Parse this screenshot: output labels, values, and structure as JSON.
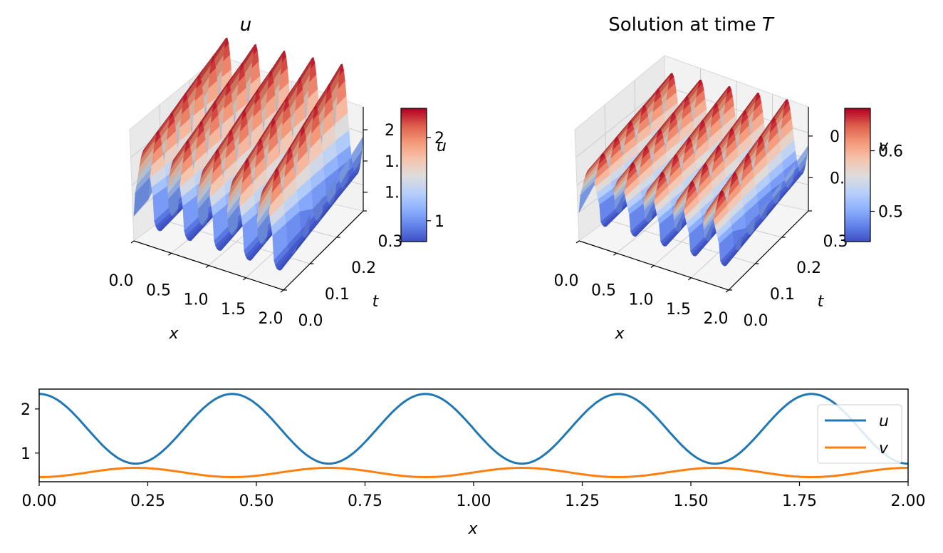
{
  "chart_data": [
    {
      "type": "surface3d",
      "title": "u",
      "xlabel": "x",
      "ylabel": "t",
      "zlabel": "u",
      "x_ticks": [
        "0.0",
        "0.5",
        "1.0",
        "1.5",
        "2.0"
      ],
      "t_ticks": [
        "0.0",
        "0.1",
        "0.2",
        "0.3"
      ],
      "z_ticks": [
        "2",
        "1.",
        "1."
      ],
      "xlim": [
        0,
        2
      ],
      "tlim": [
        0,
        0.3
      ],
      "colormap": "coolwarm",
      "colorbar": {
        "label": "u",
        "ticks": [
          "1",
          "2"
        ],
        "tick_values": [
          1,
          2
        ],
        "range": [
          0.75,
          2.35
        ]
      },
      "peak_count": 5,
      "value_range": [
        0.75,
        2.35
      ]
    },
    {
      "type": "surface3d",
      "title": "Solution at time T",
      "title_text": "Solution at time ",
      "title_italic": "T",
      "xlabel": "x",
      "ylabel": "t",
      "zlabel": "v",
      "x_ticks": [
        "0.0",
        "0.5",
        "1.0",
        "1.5",
        "2.0"
      ],
      "t_ticks": [
        "0.0",
        "0.1",
        "0.2",
        "0.3"
      ],
      "z_ticks": [
        "0",
        "0."
      ],
      "xlim": [
        0,
        2
      ],
      "tlim": [
        0,
        0.3
      ],
      "colormap": "coolwarm",
      "colorbar": {
        "label": "v",
        "ticks": [
          "0.5",
          "0.6"
        ],
        "tick_values": [
          0.5,
          0.6
        ],
        "range": [
          0.45,
          0.67
        ]
      },
      "peak_count": 5,
      "value_range": [
        0.45,
        0.67
      ]
    },
    {
      "type": "line",
      "xlabel": "x",
      "xlim": [
        0,
        2
      ],
      "ylim": [
        0.35,
        2.45
      ],
      "x_ticks": [
        0,
        0.25,
        0.5,
        0.75,
        1.0,
        1.25,
        1.5,
        1.75,
        2.0
      ],
      "x_tick_labels": [
        "0.00",
        "0.25",
        "0.50",
        "0.75",
        "1.00",
        "1.25",
        "1.50",
        "1.75",
        "2.00"
      ],
      "y_ticks": [
        1,
        2
      ],
      "y_tick_labels": [
        "1",
        "2"
      ],
      "legend": "right",
      "series": [
        {
          "name": "u",
          "color": "#1f77b4",
          "form": "cosine",
          "mean": 1.55,
          "amplitude": 0.79,
          "period": 0.4444,
          "phase": 0,
          "x": [
            0,
            0.2222,
            0.4444,
            0.6667,
            0.8889,
            1.1111,
            1.3333,
            1.5556,
            1.7778,
            2.0
          ],
          "values": [
            2.34,
            0.76,
            2.34,
            0.76,
            2.34,
            0.76,
            2.34,
            0.76,
            2.34,
            0.76
          ]
        },
        {
          "name": "v",
          "color": "#ff7f0e",
          "form": "cosine",
          "mean": 0.56,
          "amplitude": -0.105,
          "period": 0.4444,
          "phase": 0,
          "x": [
            0,
            0.2222,
            0.4444,
            0.6667,
            0.8889,
            1.1111,
            1.3333,
            1.5556,
            1.7778,
            2.0
          ],
          "values": [
            0.455,
            0.665,
            0.455,
            0.665,
            0.455,
            0.665,
            0.455,
            0.665,
            0.455,
            0.665
          ]
        }
      ]
    }
  ]
}
